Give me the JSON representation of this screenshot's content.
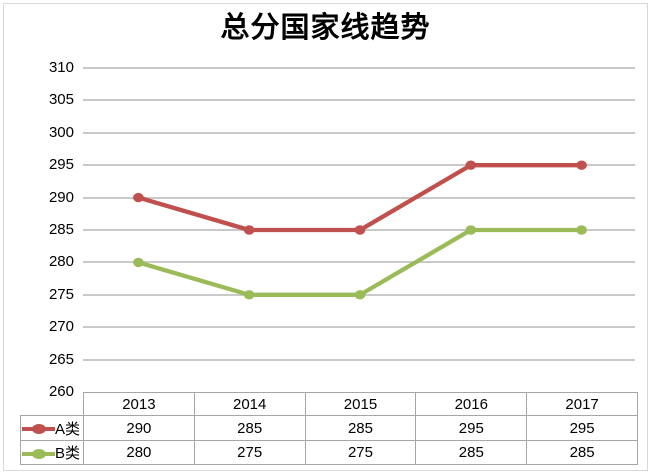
{
  "chart_data": {
    "type": "line",
    "title": "总分国家线趋势",
    "categories": [
      "2013",
      "2014",
      "2015",
      "2016",
      "2017"
    ],
    "series": [
      {
        "name": "A类",
        "color": "#c0504d",
        "values": [
          290,
          285,
          285,
          295,
          295
        ]
      },
      {
        "name": "B类",
        "color": "#9bbb59",
        "values": [
          280,
          275,
          275,
          285,
          285
        ]
      }
    ],
    "ylim": [
      260,
      310
    ],
    "ytick_step": 5,
    "yticks": [
      310,
      305,
      300,
      295,
      290,
      285,
      280,
      275,
      270,
      265,
      260
    ],
    "xlabel": "",
    "ylabel": "",
    "grid": true,
    "legend_position": "data-table-left",
    "data_table": true,
    "colors": {
      "gridline": "#c9c9c9",
      "table_border": "#a6a6a6",
      "frame_border": "#d4d9de",
      "text": "#000000"
    }
  }
}
